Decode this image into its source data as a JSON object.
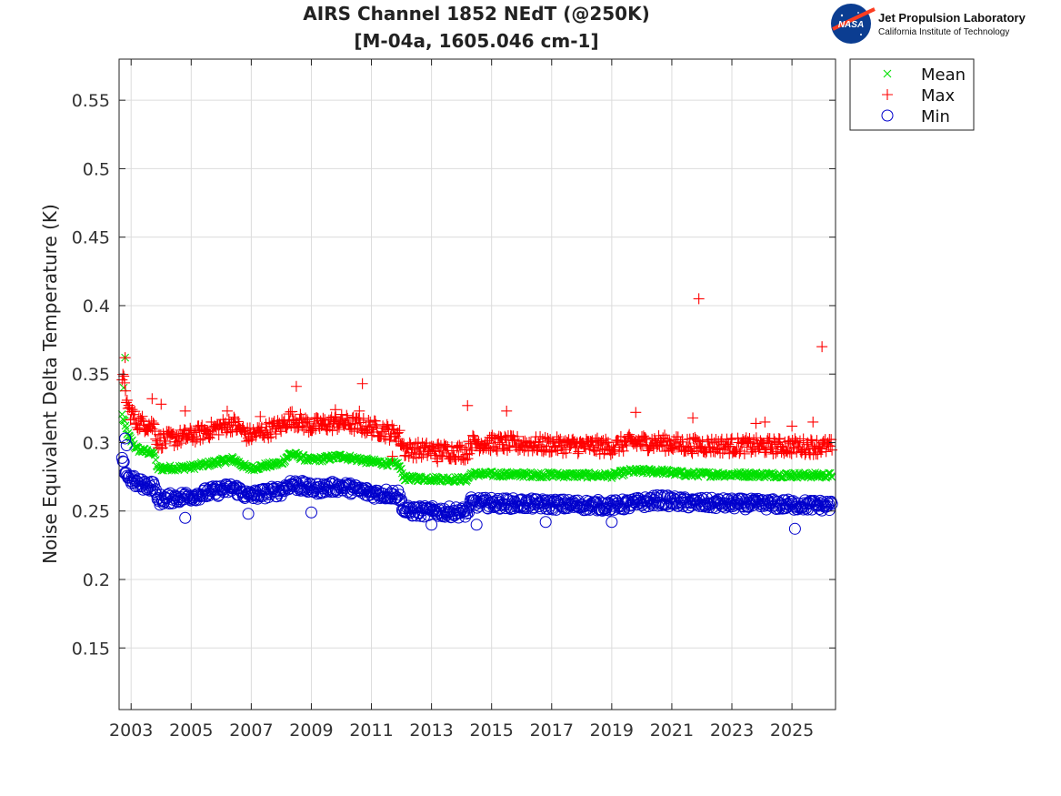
{
  "logo": {
    "agency_text": "NASA",
    "lab_name": "Jet Propulsion Laboratory",
    "institution": "California Institute of Technology"
  },
  "chart_data": {
    "type": "scatter",
    "title_line1": "AIRS Channel 1852 NEdT (@250K)",
    "title_line2": "[M-04a, 1605.046 cm-1]",
    "xlabel": "",
    "ylabel": "Noise Equivalent Delta Temperature (K)",
    "xlim": [
      2002.6,
      2026.45
    ],
    "ylim": [
      0.105,
      0.58
    ],
    "xticks": [
      2003,
      2005,
      2007,
      2009,
      2011,
      2013,
      2015,
      2017,
      2019,
      2021,
      2023,
      2025
    ],
    "yticks": [
      0.15,
      0.2,
      0.25,
      0.3,
      0.35,
      0.4,
      0.45,
      0.5,
      0.55
    ],
    "ytick_labels": [
      "0.15",
      "0.2",
      "0.25",
      "0.3",
      "0.35",
      "0.4",
      "0.45",
      "0.5",
      "0.55"
    ],
    "grid": true,
    "legend_position": "outside-top-right",
    "colors": {
      "mean": "#00e000",
      "max": "#ff0000",
      "min": "#0000cc"
    },
    "series": [
      {
        "name": "Mean",
        "marker": "x",
        "trend_x": [
          2002.7,
          2002.9,
          2003.2,
          2003.8,
          2003.85,
          2005.0,
          2006.4,
          2006.9,
          2008.0,
          2008.3,
          2009.0,
          2010.0,
          2011.0,
          2011.9,
          2012.1,
          2014.2,
          2014.3,
          2019.0,
          2019.6,
          2020.6,
          2021.5,
          2026.35
        ],
        "trend_y": [
          0.32,
          0.305,
          0.295,
          0.292,
          0.281,
          0.282,
          0.288,
          0.281,
          0.285,
          0.292,
          0.287,
          0.29,
          0.286,
          0.284,
          0.274,
          0.273,
          0.277,
          0.276,
          0.279,
          0.279,
          0.277,
          0.276
        ],
        "spread": 0.002,
        "outliers": [
          [
            2002.8,
            0.362
          ],
          [
            2002.75,
            0.34
          ]
        ]
      },
      {
        "name": "Max",
        "marker": "+",
        "trend_x": [
          2002.7,
          2002.9,
          2003.2,
          2003.8,
          2003.85,
          2005.0,
          2006.4,
          2006.9,
          2008.0,
          2008.3,
          2009.0,
          2010.0,
          2011.0,
          2011.9,
          2012.1,
          2014.2,
          2014.3,
          2019.0,
          2019.6,
          2020.6,
          2021.5,
          2026.35
        ],
        "trend_y": [
          0.35,
          0.325,
          0.315,
          0.312,
          0.301,
          0.305,
          0.314,
          0.305,
          0.312,
          0.318,
          0.312,
          0.315,
          0.311,
          0.306,
          0.295,
          0.293,
          0.3,
          0.297,
          0.3,
          0.3,
          0.298,
          0.297
        ],
        "spread": 0.006,
        "outliers": [
          [
            2003.7,
            0.332
          ],
          [
            2004.0,
            0.328
          ],
          [
            2004.8,
            0.323
          ],
          [
            2006.2,
            0.323
          ],
          [
            2007.3,
            0.319
          ],
          [
            2008.5,
            0.341
          ],
          [
            2009.8,
            0.324
          ],
          [
            2010.6,
            0.323
          ],
          [
            2010.7,
            0.343
          ],
          [
            2011.7,
            0.29
          ],
          [
            2013.2,
            0.286
          ],
          [
            2014.2,
            0.327
          ],
          [
            2015.5,
            0.323
          ],
          [
            2019.8,
            0.322
          ],
          [
            2021.7,
            0.318
          ],
          [
            2021.9,
            0.405
          ],
          [
            2023.8,
            0.314
          ],
          [
            2024.1,
            0.315
          ],
          [
            2025.0,
            0.312
          ],
          [
            2025.7,
            0.315
          ],
          [
            2026.0,
            0.37
          ],
          [
            2002.8,
            0.362
          ]
        ]
      },
      {
        "name": "Min",
        "marker": "o",
        "trend_x": [
          2002.7,
          2002.9,
          2003.2,
          2003.8,
          2003.85,
          2005.0,
          2006.4,
          2006.9,
          2008.0,
          2008.3,
          2009.0,
          2010.0,
          2011.0,
          2011.9,
          2012.1,
          2014.2,
          2014.3,
          2019.0,
          2019.6,
          2020.6,
          2021.5,
          2026.35
        ],
        "trend_y": [
          0.285,
          0.275,
          0.27,
          0.268,
          0.258,
          0.261,
          0.267,
          0.261,
          0.265,
          0.27,
          0.266,
          0.268,
          0.263,
          0.262,
          0.25,
          0.249,
          0.256,
          0.254,
          0.255,
          0.258,
          0.256,
          0.254
        ],
        "spread": 0.004,
        "outliers": [
          [
            2002.8,
            0.303
          ],
          [
            2002.85,
            0.298
          ],
          [
            2004.8,
            0.245
          ],
          [
            2006.9,
            0.248
          ],
          [
            2008.7,
            0.272
          ],
          [
            2009.0,
            0.249
          ],
          [
            2013.0,
            0.24
          ],
          [
            2014.5,
            0.24
          ],
          [
            2016.8,
            0.242
          ],
          [
            2019.0,
            0.242
          ],
          [
            2025.1,
            0.237
          ]
        ]
      }
    ]
  }
}
